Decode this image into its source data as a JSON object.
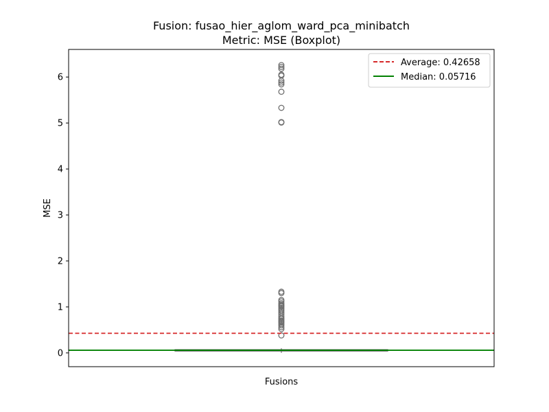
{
  "chart_data": {
    "type": "boxplot",
    "title": "Fusion: fusao_hier_aglom_ward_pca_minibatch",
    "subtitle": "Metric: MSE (Boxplot)",
    "xlabel": "Fusions",
    "ylabel": "MSE",
    "ylim": [
      -0.3,
      6.6
    ],
    "yticks": [
      0,
      1,
      2,
      3,
      4,
      5,
      6
    ],
    "grid": false,
    "legend_position": "top-right",
    "box": {
      "q1": 0.04,
      "median": 0.055,
      "q3": 0.07,
      "whisker_low": 0.0,
      "whisker_high": 0.1,
      "color": "#6a9c6e"
    },
    "outliers": [
      0.38,
      0.52,
      0.56,
      0.6,
      0.63,
      0.66,
      0.68,
      0.7,
      0.73,
      0.76,
      0.8,
      0.84,
      0.88,
      0.92,
      0.95,
      0.98,
      1.01,
      1.03,
      1.05,
      1.08,
      1.12,
      1.15,
      1.3,
      1.33,
      5.01,
      5.02,
      5.33,
      5.68,
      5.84,
      5.88,
      5.92,
      6.03,
      6.05,
      6.18,
      6.22,
      6.26
    ],
    "lines": [
      {
        "name": "Average: 0.42658",
        "value": 0.42658,
        "color": "#d62728",
        "style": "dashed"
      },
      {
        "name": "Median: 0.05716",
        "value": 0.05716,
        "color": "#008000",
        "style": "solid"
      }
    ]
  }
}
